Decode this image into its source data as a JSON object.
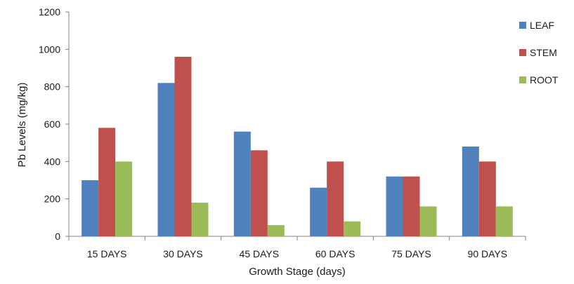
{
  "chart_data": {
    "type": "bar",
    "title": "",
    "xlabel": "Growth Stage (days)",
    "ylabel": "Pb Levels (mg/kg)",
    "ylim": [
      0,
      1200
    ],
    "yticks": [
      0,
      200,
      400,
      600,
      800,
      1000,
      1200
    ],
    "grid": false,
    "legend_position": "right",
    "categories": [
      "15 DAYS",
      "30 DAYS",
      "45 DAYS",
      "60 DAYS",
      "75 DAYS",
      "90 DAYS"
    ],
    "series": [
      {
        "name": "LEAF",
        "color": "#4f81bd",
        "values": [
          300,
          820,
          560,
          260,
          320,
          480
        ]
      },
      {
        "name": "STEM",
        "color": "#c0504d",
        "values": [
          580,
          960,
          460,
          400,
          320,
          400
        ]
      },
      {
        "name": "ROOT",
        "color": "#9bbb59",
        "values": [
          400,
          180,
          60,
          80,
          160,
          160
        ]
      }
    ]
  }
}
